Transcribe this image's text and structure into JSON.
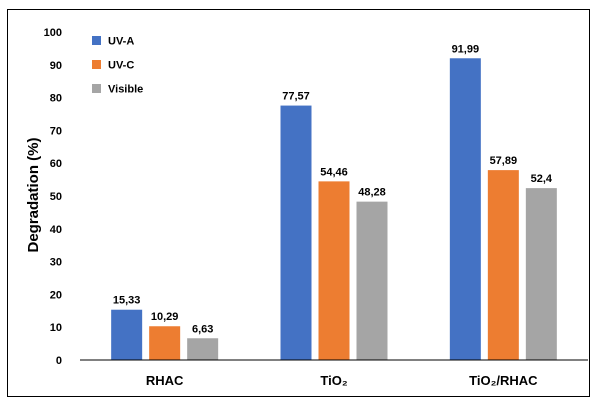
{
  "chart_data": {
    "type": "bar",
    "title": "",
    "xlabel": "",
    "ylabel": "Degradation (%)",
    "ylim": [
      0,
      100
    ],
    "yticks": [
      0,
      10,
      20,
      30,
      40,
      50,
      60,
      70,
      80,
      90,
      100
    ],
    "grid": false,
    "legend_position": "top-left",
    "categories": [
      "RHAC",
      "TiO₂",
      "TiO₂/RHAC"
    ],
    "series": [
      {
        "name": "UV-A",
        "color": "#4472C4",
        "values": [
          15.33,
          77.57,
          91.99
        ],
        "labels": [
          "15,33",
          "77,57",
          "91,99"
        ]
      },
      {
        "name": "UV-C",
        "color": "#ED7D31",
        "values": [
          10.29,
          54.46,
          57.89
        ],
        "labels": [
          "10,29",
          "54,46",
          "57,89"
        ]
      },
      {
        "name": "Visible",
        "color": "#A5A5A5",
        "values": [
          6.63,
          48.28,
          52.4
        ],
        "labels": [
          "6,63",
          "48,28",
          "52,4"
        ]
      }
    ]
  }
}
